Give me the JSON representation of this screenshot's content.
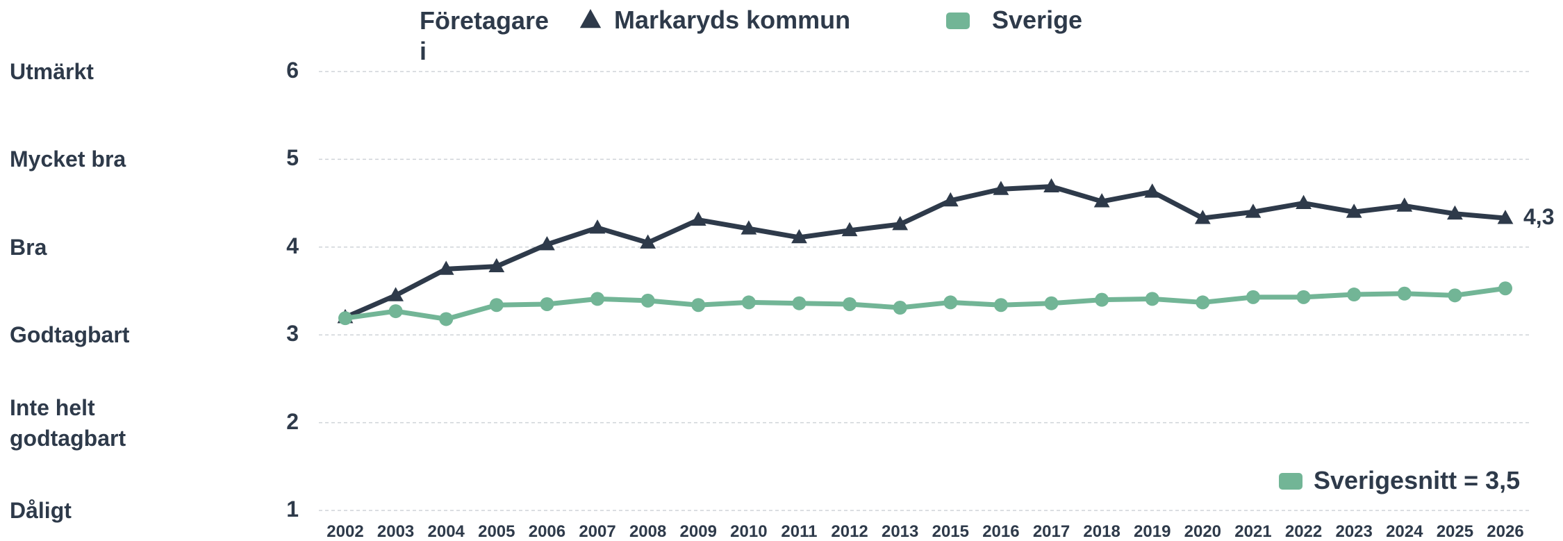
{
  "chart_data": {
    "type": "line",
    "legend_title": "Företagare i",
    "categories": [
      "2002",
      "2003",
      "2004",
      "2005",
      "2006",
      "2007",
      "2008",
      "2009",
      "2010",
      "2011",
      "2012",
      "2013",
      "2015",
      "2016",
      "2017",
      "2018",
      "2019",
      "2020",
      "2021",
      "2022",
      "2023",
      "2024",
      "2025",
      "2026"
    ],
    "series": [
      {
        "name": "Markaryds kommun",
        "color": "#2e3a4a",
        "marker": "triangle",
        "values": [
          3.2,
          3.45,
          3.75,
          3.78,
          4.03,
          4.22,
          4.05,
          4.31,
          4.21,
          4.11,
          4.19,
          4.26,
          4.53,
          4.66,
          4.69,
          4.52,
          4.63,
          4.33,
          4.4,
          4.5,
          4.4,
          4.47,
          4.38,
          4.33
        ],
        "value_labels": [
          null,
          null,
          null,
          null,
          null,
          null,
          null,
          null,
          null,
          null,
          null,
          null,
          null,
          null,
          null,
          null,
          null,
          null,
          null,
          null,
          null,
          null,
          null,
          "4,3"
        ]
      },
      {
        "name": "Sverige",
        "color": "#72b596",
        "marker": "circle",
        "values": [
          3.19,
          3.27,
          3.18,
          3.34,
          3.35,
          3.41,
          3.39,
          3.34,
          3.37,
          3.36,
          3.35,
          3.31,
          3.37,
          3.34,
          3.36,
          3.4,
          3.41,
          3.37,
          3.43,
          3.43,
          3.46,
          3.47,
          3.45,
          3.53
        ]
      }
    ],
    "ylim": [
      1,
      6
    ],
    "yticks": [
      1,
      2,
      3,
      4,
      5,
      6
    ],
    "ytick_categories": [
      "Dåligt",
      "Inte helt godtagbart",
      "Godtagbart",
      "Bra",
      "Mycket bra",
      "Utmärkt"
    ],
    "grid": true,
    "annotation": {
      "text": "Sverigesnitt = 3,5",
      "color": "#72b596"
    }
  }
}
